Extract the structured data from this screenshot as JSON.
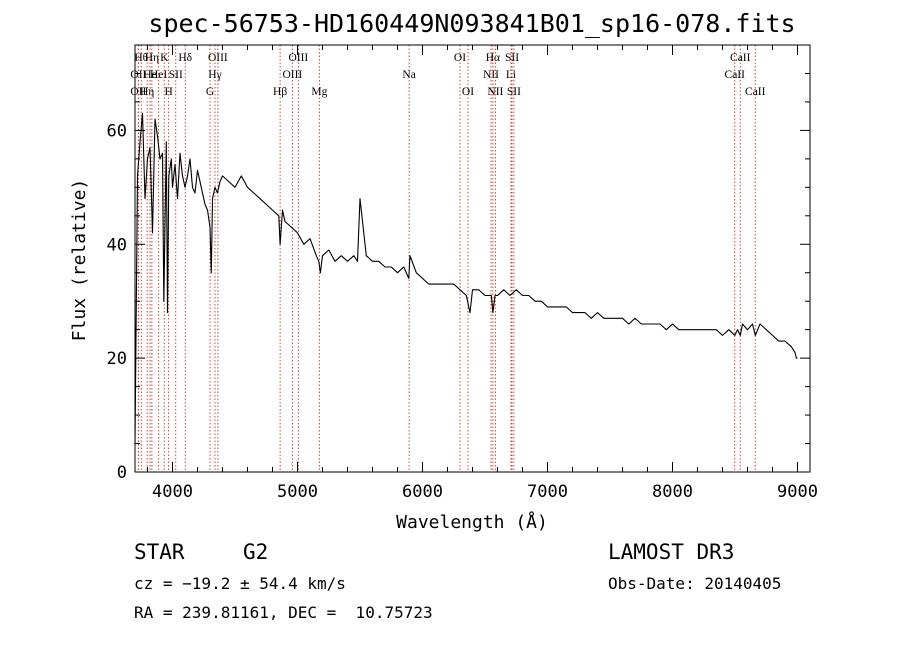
{
  "chart_data": {
    "type": "line",
    "title": "spec-56753-HD160449N093841B01_sp16-078.fits",
    "xlabel": "Wavelength (Å)",
    "ylabel": "Flux (relative)",
    "xlim": [
      3700,
      9100
    ],
    "ylim": [
      0,
      75
    ],
    "xticks": [
      4000,
      5000,
      6000,
      7000,
      8000,
      9000
    ],
    "yticks": [
      0,
      20,
      40,
      60
    ],
    "series": [
      {
        "name": "spectrum",
        "x": [
          3700,
          3720,
          3740,
          3760,
          3780,
          3800,
          3820,
          3840,
          3860,
          3880,
          3900,
          3920,
          3930,
          3950,
          3960,
          3970,
          3990,
          4000,
          4020,
          4040,
          4060,
          4080,
          4100,
          4120,
          4140,
          4160,
          4180,
          4200,
          4220,
          4240,
          4260,
          4280,
          4300,
          4310,
          4320,
          4340,
          4360,
          4380,
          4400,
          4450,
          4500,
          4550,
          4600,
          4650,
          4700,
          4750,
          4800,
          4850,
          4861,
          4880,
          4900,
          4950,
          5000,
          5050,
          5100,
          5150,
          5170,
          5183,
          5200,
          5250,
          5300,
          5350,
          5400,
          5450,
          5480,
          5500,
          5550,
          5600,
          5650,
          5700,
          5750,
          5800,
          5850,
          5890,
          5900,
          5950,
          6000,
          6050,
          6100,
          6150,
          6200,
          6250,
          6300,
          6350,
          6380,
          6400,
          6450,
          6500,
          6550,
          6563,
          6580,
          6600,
          6650,
          6700,
          6750,
          6800,
          6850,
          6900,
          6950,
          7000,
          7050,
          7100,
          7150,
          7200,
          7250,
          7300,
          7350,
          7400,
          7450,
          7500,
          7550,
          7600,
          7650,
          7700,
          7750,
          7800,
          7850,
          7900,
          7950,
          8000,
          8050,
          8100,
          8150,
          8200,
          8250,
          8300,
          8350,
          8400,
          8450,
          8498,
          8520,
          8542,
          8560,
          8600,
          8640,
          8662,
          8700,
          8750,
          8800,
          8850,
          8900,
          8950,
          8980,
          8990,
          9000
        ],
        "y": [
          5,
          52,
          58,
          63,
          48,
          55,
          57,
          42,
          62,
          59,
          55,
          56,
          30,
          58,
          28,
          52,
          55,
          50,
          54,
          48,
          56,
          52,
          50,
          52,
          55,
          50,
          49,
          53,
          51,
          49,
          47,
          46,
          43,
          35,
          48,
          50,
          49,
          51,
          52,
          51,
          50,
          52,
          50,
          49,
          48,
          47,
          46,
          45,
          40,
          46,
          44,
          43,
          42,
          40,
          41,
          38,
          37,
          35,
          38,
          39,
          37,
          38,
          37,
          38,
          37,
          48,
          38,
          37,
          37,
          36,
          36,
          35,
          36,
          34,
          38,
          35,
          34,
          33,
          33,
          33,
          33,
          33,
          32,
          31,
          28,
          32,
          32,
          31,
          31,
          28,
          31,
          31,
          32,
          31,
          32,
          31,
          31,
          30,
          30,
          29,
          29,
          29,
          29,
          28,
          28,
          28,
          27,
          28,
          27,
          27,
          27,
          27,
          26,
          27,
          26,
          26,
          26,
          26,
          25,
          26,
          25,
          25,
          25,
          25,
          25,
          25,
          25,
          24,
          25,
          24,
          25,
          24,
          26,
          25,
          26,
          24,
          26,
          25,
          24,
          23,
          23,
          22,
          21,
          20,
          20
        ]
      }
    ],
    "line_markers": [
      {
        "wavelength": 3727,
        "label": "OII",
        "row": 2
      },
      {
        "wavelength": 3727,
        "label": "OII",
        "row": 3
      },
      {
        "wavelength": 3750,
        "label": "Hθ",
        "row": 1
      },
      {
        "wavelength": 3797,
        "label": "Hη",
        "row": 3
      },
      {
        "wavelength": 3820,
        "label": "He",
        "row": 2
      },
      {
        "wavelength": 3835,
        "label": "Hη",
        "row": 1
      },
      {
        "wavelength": 3889,
        "label": "HeI",
        "row": 2
      },
      {
        "wavelength": 3934,
        "label": "K",
        "row": 1
      },
      {
        "wavelength": 3969,
        "label": "H",
        "row": 3
      },
      {
        "wavelength": 4026,
        "label": "SII",
        "row": 2
      },
      {
        "wavelength": 4102,
        "label": "Hδ",
        "row": 1
      },
      {
        "wavelength": 4300,
        "label": "G",
        "row": 3
      },
      {
        "wavelength": 4340,
        "label": "Hγ",
        "row": 2
      },
      {
        "wavelength": 4363,
        "label": "OIII",
        "row": 1
      },
      {
        "wavelength": 4861,
        "label": "Hβ",
        "row": 3
      },
      {
        "wavelength": 4959,
        "label": "OIII",
        "row": 2
      },
      {
        "wavelength": 5007,
        "label": "OIII",
        "row": 1
      },
      {
        "wavelength": 5175,
        "label": "Mg",
        "row": 3
      },
      {
        "wavelength": 5893,
        "label": "Na",
        "row": 2
      },
      {
        "wavelength": 6300,
        "label": "OI",
        "row": 1
      },
      {
        "wavelength": 6364,
        "label": "OI",
        "row": 3
      },
      {
        "wavelength": 6548,
        "label": "NII",
        "row": 2
      },
      {
        "wavelength": 6563,
        "label": "Hα",
        "row": 1
      },
      {
        "wavelength": 6583,
        "label": "NII",
        "row": 3
      },
      {
        "wavelength": 6708,
        "label": "Li",
        "row": 2
      },
      {
        "wavelength": 6716,
        "label": "SII",
        "row": 1
      },
      {
        "wavelength": 6731,
        "label": "SII",
        "row": 3
      },
      {
        "wavelength": 8498,
        "label": "CaII",
        "row": 2
      },
      {
        "wavelength": 8542,
        "label": "CaII",
        "row": 1
      },
      {
        "wavelength": 8662,
        "label": "CaII",
        "row": 3
      }
    ]
  },
  "info": {
    "object_class": "STAR",
    "subclass": "G2",
    "survey": "LAMOST DR3",
    "redshift_text": "cz = −19.2 ± 54.4 km/s",
    "obs_date_text": "Obs-Date: 20140405",
    "coords_text": "RA = 239.81161, DEC =  10.75723"
  },
  "colors": {
    "spectrum": "#000000",
    "marker_line": "#c0392b",
    "axis": "#000000"
  }
}
